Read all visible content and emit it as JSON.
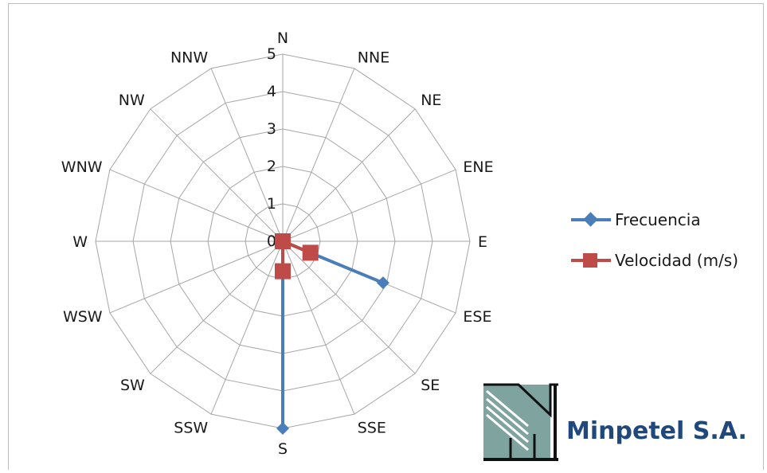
{
  "chart_data": {
    "type": "radar",
    "categories": [
      "N",
      "NNE",
      "NE",
      "ENE",
      "E",
      "ESE",
      "SE",
      "SSE",
      "S",
      "SSW",
      "SW",
      "WSW",
      "W",
      "WNW",
      "NW",
      "NNW"
    ],
    "rlim": [
      0,
      5
    ],
    "ticks": [
      "0",
      "1",
      "2",
      "3",
      "4",
      "5"
    ],
    "grid": true,
    "legend_position": "right",
    "series": [
      {
        "name": "Frecuencia",
        "color": "#4a7ebb",
        "marker": "diamond",
        "values": [
          0,
          0,
          0,
          0,
          0,
          2.9,
          0,
          0,
          5,
          0,
          0,
          0,
          0,
          0,
          0,
          0
        ]
      },
      {
        "name": "Velocidad (m/s)",
        "color": "#be4b48",
        "marker": "square",
        "values": [
          0,
          0,
          0,
          0,
          0,
          0.8,
          0,
          0,
          0.8,
          0,
          0,
          0,
          0,
          0,
          0,
          0
        ]
      }
    ]
  },
  "logo": {
    "text": "Minpetel S.A.",
    "text_color": "#1f497d",
    "mark_color": "#7fa39f"
  }
}
